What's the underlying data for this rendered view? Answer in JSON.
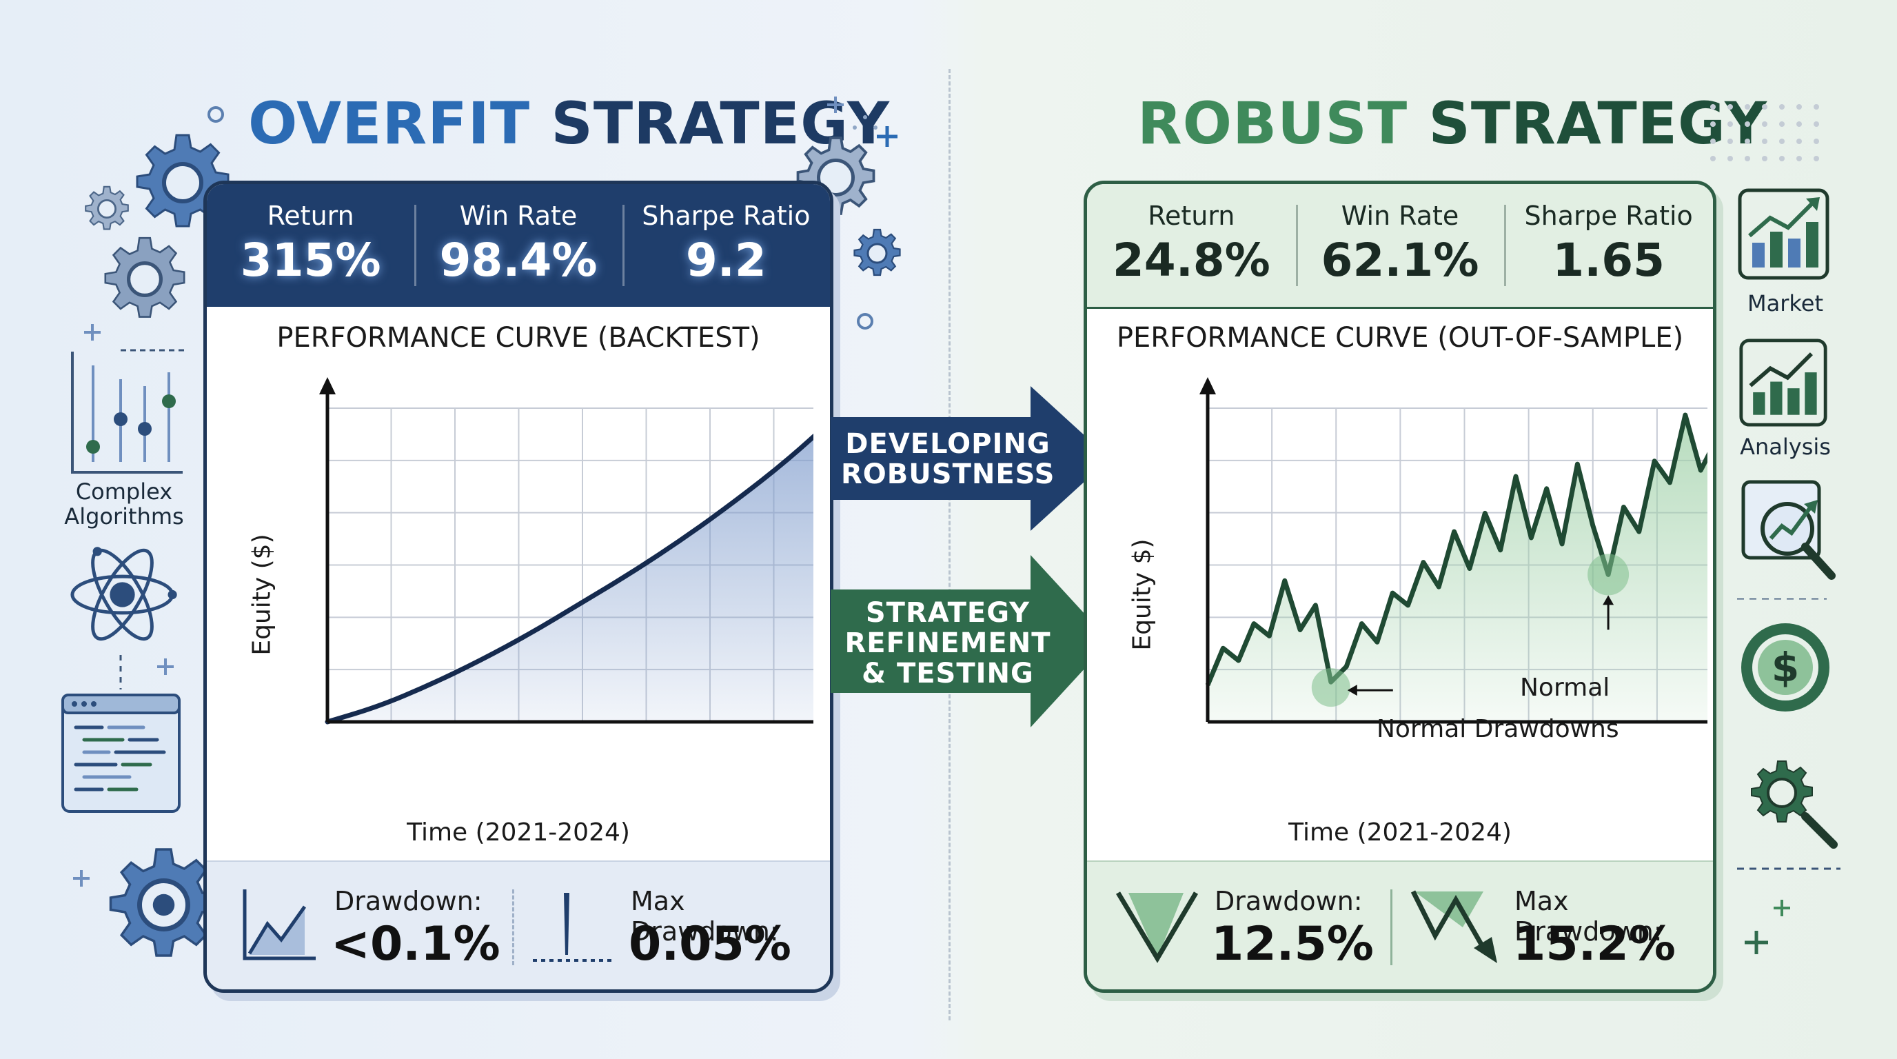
{
  "left": {
    "title_accent": "OVERFIT",
    "title_rest": " STRATEGY",
    "metrics": [
      {
        "label": "Return",
        "value": "315%"
      },
      {
        "label": "Win Rate",
        "value": "98.4%"
      },
      {
        "label": "Sharpe Ratio",
        "value": "9.2"
      }
    ],
    "chart_title": "PERFORMANCE CURVE (BACKTEST)",
    "y_label": "Equity ($)",
    "x_label": "Time (2021-2024)",
    "drawdown_label": "Drawdown:",
    "drawdown_value": "<0.1%",
    "max_drawdown_label": "Max Drawdown:",
    "max_drawdown_value": "0.05%",
    "side_label": "Complex\nAlgorithms",
    "color": "#1f3e6c"
  },
  "right": {
    "title_accent": "ROBUST",
    "title_rest": " STRATEGY",
    "metrics": [
      {
        "label": "Return",
        "value": "24.8%"
      },
      {
        "label": "Win Rate",
        "value": "62.1%"
      },
      {
        "label": "Sharpe Ratio",
        "value": "1.65"
      }
    ],
    "chart_title": "PERFORMANCE CURVE (OUT-OF-SAMPLE)",
    "y_label": "Equity $)",
    "x_label": "Time (2021-2024)",
    "annotation_normal": "Normal",
    "annotation_drawdowns": "Normal Drawdowns",
    "drawdown_label": "Drawdown:",
    "drawdown_value": "12.5%",
    "max_drawdown_label": "Max Drawdown:",
    "max_drawdown_value": "15.2%",
    "side_labels": [
      "Market",
      "Analysis"
    ],
    "color": "#2d5e45"
  },
  "arrows": {
    "top": "DEVELOPING\nROBUSTNESS",
    "bottom": "STRATEGY\nREFINEMENT\n& TESTING",
    "top_color": "#1f3e6c",
    "bottom_color": "#2f6b4c"
  },
  "icons": {
    "left": [
      "gear-icon",
      "sliders-icon",
      "atom-icon",
      "code-window-icon"
    ],
    "right": [
      "bar-chart-up-icon",
      "magnifier-chart-icon",
      "dollar-coin-icon",
      "gear-magnifier-icon"
    ]
  },
  "chart_data": [
    {
      "type": "line",
      "title": "PERFORMANCE CURVE (BACKTEST)",
      "xlabel": "Time (2021-2024)",
      "ylabel": "Equity ($)",
      "x": [
        0,
        0.1,
        0.2,
        0.3,
        0.4,
        0.5,
        0.6,
        0.7,
        0.8,
        0.9,
        1.0
      ],
      "series": [
        {
          "values": [
            0,
            0.05,
            0.12,
            0.2,
            0.29,
            0.39,
            0.49,
            0.6,
            0.72,
            0.85,
            1.0
          ]
        }
      ],
      "grid": true
    },
    {
      "type": "line",
      "title": "PERFORMANCE CURVE (OUT-OF-SAMPLE)",
      "xlabel": "Time (2021-2024)",
      "ylabel": "Equity $)",
      "x": [
        0,
        0.03,
        0.06,
        0.09,
        0.12,
        0.15,
        0.18,
        0.21,
        0.24,
        0.27,
        0.3,
        0.33,
        0.36,
        0.39,
        0.42,
        0.45,
        0.48,
        0.51,
        0.54,
        0.57,
        0.6,
        0.63,
        0.66,
        0.69,
        0.72,
        0.75,
        0.78,
        0.81,
        0.84,
        0.87,
        0.9,
        0.93,
        0.96,
        1.0
      ],
      "series": [
        {
          "values": [
            0.12,
            0.24,
            0.2,
            0.32,
            0.28,
            0.46,
            0.3,
            0.38,
            0.13,
            0.18,
            0.32,
            0.26,
            0.42,
            0.38,
            0.52,
            0.44,
            0.62,
            0.5,
            0.68,
            0.56,
            0.8,
            0.6,
            0.76,
            0.58,
            0.84,
            0.64,
            0.48,
            0.7,
            0.62,
            0.85,
            0.78,
            1.0,
            0.82,
            0.95
          ]
        }
      ],
      "grid": true
    }
  ]
}
